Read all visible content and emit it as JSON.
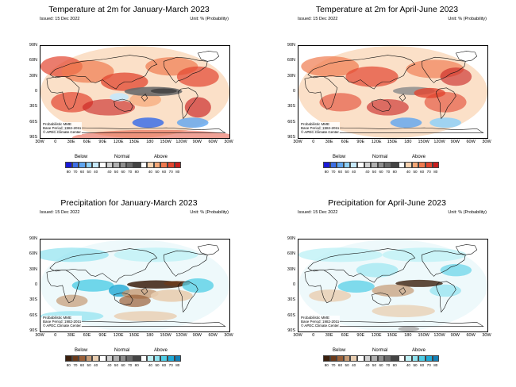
{
  "panels": [
    {
      "id": "temp-jfm",
      "title": "Temperature at 2m for January-March 2023",
      "issued": "Issued: 15 Dec 2022",
      "unit": "Unit: % (Probability)",
      "note_lines": [
        "Probabilistic MME",
        "Base Period: 1982-2011",
        "© APEC Climate Center"
      ],
      "colorbar": {
        "categories": [
          "Below",
          "Normal",
          "Above"
        ],
        "colors": [
          "#1a1ad8",
          "#3d6fe6",
          "#5fa5f0",
          "#8fd0f8",
          "#c5e8fb",
          "#ffffff",
          "#d2d2d2",
          "#b0b0b0",
          "#8e8e8e",
          "#6a6a6a",
          "#444444",
          "#ffffff",
          "#fbd3b0",
          "#f6a776",
          "#ef7a4f",
          "#e2452f",
          "#c81e1e"
        ],
        "ticks": [
          "80",
          "70",
          "60",
          "50",
          "40",
          "",
          "40",
          "50",
          "60",
          "70",
          "80",
          "",
          "40",
          "50",
          "60",
          "70",
          "80"
        ]
      }
    },
    {
      "id": "temp-amj",
      "title": "Temperature at 2m for April-June 2023",
      "issued": "Issued: 15 Dec 2022",
      "unit": "Unit: % (Probability)",
      "note_lines": [
        "Probabilistic MME",
        "Base Period: 1982-2011",
        "© APEC Climate Center"
      ],
      "colorbar": {
        "categories": [
          "Below",
          "Normal",
          "Above"
        ],
        "colors": [
          "#1a1ad8",
          "#3d6fe6",
          "#5fa5f0",
          "#8fd0f8",
          "#c5e8fb",
          "#ffffff",
          "#d2d2d2",
          "#b0b0b0",
          "#8e8e8e",
          "#6a6a6a",
          "#444444",
          "#ffffff",
          "#fbd3b0",
          "#f6a776",
          "#ef7a4f",
          "#e2452f",
          "#c81e1e"
        ],
        "ticks": [
          "80",
          "70",
          "60",
          "50",
          "40",
          "",
          "40",
          "50",
          "60",
          "70",
          "80",
          "",
          "40",
          "50",
          "60",
          "70",
          "80"
        ]
      }
    },
    {
      "id": "prec-jfm",
      "title": "Precipitation for January-March 2023",
      "issued": "Issued: 15 Dec 2022",
      "unit": "Unit: % (Probability)",
      "note_lines": [
        "Probabilistic MME",
        "Base Period: 1982-2011",
        "© APEC Climate Center"
      ],
      "colorbar": {
        "categories": [
          "Below",
          "Normal",
          "Above"
        ],
        "colors": [
          "#3b1f0c",
          "#6b3a1a",
          "#9a6038",
          "#c59a74",
          "#e8cdb0",
          "#ffffff",
          "#d2d2d2",
          "#b0b0b0",
          "#8e8e8e",
          "#6a6a6a",
          "#444444",
          "#ffffff",
          "#bff1f6",
          "#8ee3f0",
          "#4fcde6",
          "#1fa9d6",
          "#137fb6"
        ],
        "ticks": [
          "80",
          "70",
          "60",
          "50",
          "40",
          "",
          "40",
          "50",
          "60",
          "70",
          "80",
          "",
          "40",
          "50",
          "60",
          "70",
          "80"
        ]
      }
    },
    {
      "id": "prec-amj",
      "title": "Precipitation for April-June 2023",
      "issued": "Issued: 15 Dec 2022",
      "unit": "Unit: % (Probability)",
      "note_lines": [
        "Probabilistic MME",
        "Base Period: 1982-2011",
        "© APEC Climate Center"
      ],
      "colorbar": {
        "categories": [
          "Below",
          "Normal",
          "Above"
        ],
        "colors": [
          "#3b1f0c",
          "#6b3a1a",
          "#9a6038",
          "#c59a74",
          "#e8cdb0",
          "#ffffff",
          "#d2d2d2",
          "#b0b0b0",
          "#8e8e8e",
          "#6a6a6a",
          "#444444",
          "#ffffff",
          "#bff1f6",
          "#8ee3f0",
          "#4fcde6",
          "#1fa9d6",
          "#137fb6"
        ],
        "ticks": [
          "80",
          "70",
          "60",
          "50",
          "40",
          "",
          "40",
          "50",
          "60",
          "70",
          "80",
          "",
          "40",
          "50",
          "60",
          "70",
          "80"
        ]
      }
    }
  ],
  "axes": {
    "lat_labels": [
      "90N",
      "60N",
      "30N",
      "0",
      "30S",
      "60S",
      "90S"
    ],
    "lon_labels": [
      "30W",
      "0",
      "30E",
      "60E",
      "90E",
      "120E",
      "150E",
      "180",
      "150W",
      "120W",
      "90W",
      "60W",
      "30W"
    ]
  }
}
